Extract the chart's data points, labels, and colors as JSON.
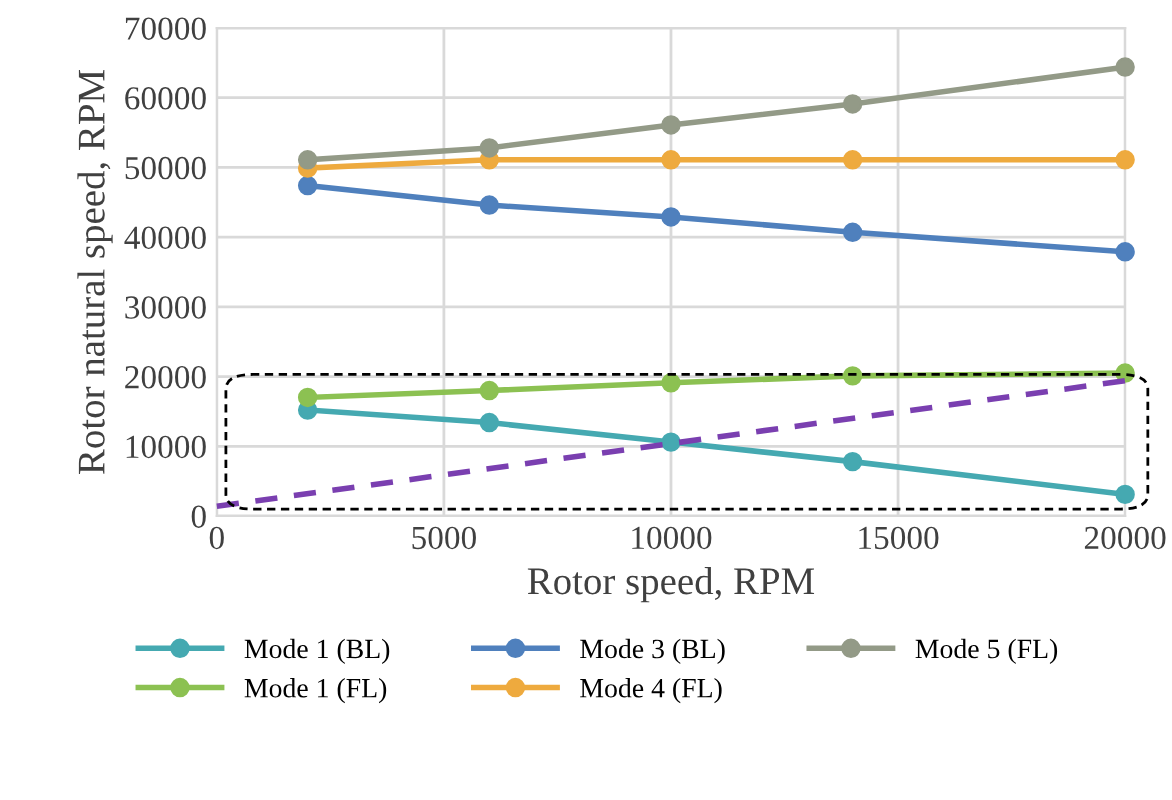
{
  "chart_data": {
    "type": "line",
    "xlabel": "Rotor speed, RPM",
    "ylabel": "Rotor natural speed, RPM",
    "xlim": [
      0,
      20000
    ],
    "xticks": [
      0,
      5000,
      10000,
      15000,
      20000
    ],
    "ylim": [
      0,
      70000
    ],
    "yticks": [
      0,
      10000,
      20000,
      30000,
      40000,
      50000,
      60000,
      70000
    ],
    "grid": true,
    "legend": "bottom",
    "marker": "circle",
    "x": [
      2000,
      6000,
      10000,
      14000,
      20000
    ],
    "series": [
      {
        "name": "Mode 1 (BL)",
        "color": "#45a9b1",
        "values": [
          15200,
          13400,
          10600,
          7800,
          3100
        ]
      },
      {
        "name": "Mode 1 (FL)",
        "color": "#8cc152",
        "values": [
          17000,
          18000,
          19100,
          20100,
          20500
        ]
      },
      {
        "name": "Mode 3 (BL)",
        "color": "#4f80bd",
        "values": [
          47400,
          44600,
          42900,
          40700,
          37900
        ]
      },
      {
        "name": "Mode 4 (FL)",
        "color": "#eeaa3e",
        "values": [
          49900,
          51100,
          51100,
          51100,
          51100
        ]
      },
      {
        "name": "Mode 5 (FL)",
        "color": "#939a87",
        "values": [
          51100,
          52800,
          56100,
          59100,
          64400
        ]
      },
      {
        "color": "#7a3fb0",
        "x": [
          0,
          20000
        ],
        "values": [
          1400,
          19400
        ],
        "line_style": "dashed",
        "marker": "none"
      }
    ]
  }
}
